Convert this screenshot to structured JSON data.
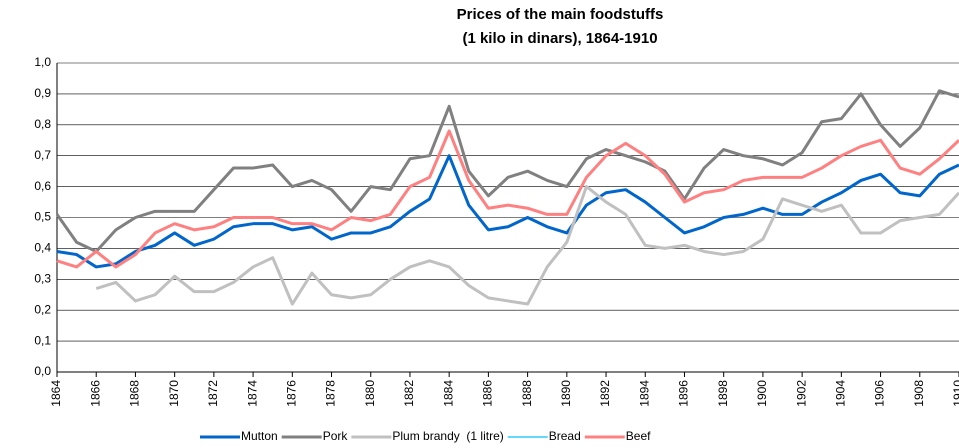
{
  "chart_data": {
    "type": "line",
    "title": "Prices of the main foodstuffs",
    "subtitle": "(1 kilo in dinars), 1864-1910",
    "x": [
      1864,
      1865,
      1866,
      1867,
      1868,
      1869,
      1870,
      1871,
      1872,
      1873,
      1874,
      1875,
      1876,
      1877,
      1878,
      1879,
      1880,
      1881,
      1882,
      1883,
      1884,
      1885,
      1886,
      1887,
      1888,
      1889,
      1890,
      1891,
      1892,
      1893,
      1894,
      1895,
      1896,
      1897,
      1898,
      1899,
      1900,
      1901,
      1902,
      1903,
      1904,
      1905,
      1906,
      1907,
      1908,
      1909,
      1910
    ],
    "xlim": [
      1864,
      1910
    ],
    "xticks": [
      1864,
      1866,
      1868,
      1870,
      1872,
      1874,
      1876,
      1878,
      1880,
      1882,
      1884,
      1886,
      1888,
      1890,
      1892,
      1894,
      1896,
      1898,
      1900,
      1902,
      1904,
      1906,
      1908,
      1910
    ],
    "ylim": [
      0,
      1
    ],
    "yticks": [
      {
        "value": 0,
        "label": "0,0"
      },
      {
        "value": 0.1,
        "label": "0,1"
      },
      {
        "value": 0.2,
        "label": "0,2"
      },
      {
        "value": 0.3,
        "label": "0,3"
      },
      {
        "value": 0.4,
        "label": "0,4"
      },
      {
        "value": 0.5,
        "label": "0,5"
      },
      {
        "value": 0.6,
        "label": "0,6"
      },
      {
        "value": 0.7,
        "label": "0,7"
      },
      {
        "value": 0.8,
        "label": "0,8"
      },
      {
        "value": 0.9,
        "label": "0,9"
      },
      {
        "value": 1,
        "label": "1,0"
      }
    ],
    "grid": true,
    "legend": "bottom",
    "series": [
      {
        "name": "Mutton",
        "color": "#0066cc",
        "values": [
          0.39,
          0.38,
          0.34,
          0.35,
          0.39,
          0.41,
          0.45,
          0.41,
          0.43,
          0.47,
          0.48,
          0.48,
          0.46,
          0.47,
          0.43,
          0.45,
          0.45,
          0.47,
          0.52,
          0.56,
          0.7,
          0.54,
          0.46,
          0.47,
          0.5,
          0.47,
          0.45,
          0.54,
          0.58,
          0.59,
          0.55,
          0.5,
          0.45,
          0.47,
          0.5,
          0.51,
          0.53,
          0.51,
          0.51,
          0.55,
          0.58,
          0.62,
          0.64,
          0.58,
          0.57,
          0.64,
          0.67
        ]
      },
      {
        "name": "Pork",
        "color": "#808080",
        "values": [
          0.51,
          0.42,
          0.39,
          0.46,
          0.5,
          0.52,
          0.52,
          0.52,
          0.59,
          0.66,
          0.66,
          0.67,
          0.6,
          0.62,
          0.59,
          0.52,
          0.6,
          0.59,
          0.69,
          0.7,
          0.86,
          0.65,
          0.57,
          0.63,
          0.65,
          0.62,
          0.6,
          0.69,
          0.72,
          0.7,
          0.68,
          0.65,
          0.56,
          0.66,
          0.72,
          0.7,
          0.69,
          0.67,
          0.71,
          0.81,
          0.82,
          0.9,
          0.8,
          0.73,
          0.79,
          0.91,
          0.89
        ]
      },
      {
        "name": "Plum brandy  (1 litre)",
        "color": "#c0c0c0",
        "values": [
          null,
          null,
          0.27,
          0.29,
          0.23,
          0.25,
          0.31,
          0.26,
          0.26,
          0.29,
          0.34,
          0.37,
          0.22,
          0.32,
          0.25,
          0.24,
          0.25,
          0.3,
          0.34,
          0.36,
          0.34,
          0.28,
          0.24,
          0.23,
          0.22,
          0.34,
          0.42,
          0.6,
          0.55,
          0.51,
          0.41,
          0.4,
          0.41,
          0.39,
          0.38,
          0.39,
          0.43,
          0.56,
          0.54,
          0.52,
          0.54,
          0.45,
          0.45,
          0.49,
          0.5,
          0.51,
          0.58
        ]
      },
      {
        "name": "Bread",
        "color": "#33ccff",
        "values": [
          null,
          null,
          null,
          null,
          null,
          null,
          null,
          null,
          null,
          null,
          null,
          null,
          null,
          null,
          null,
          null,
          null,
          null,
          null,
          null,
          null,
          null,
          null,
          null,
          null,
          null,
          null,
          null,
          null,
          null,
          null,
          null,
          null,
          null,
          null,
          null,
          null,
          null,
          null,
          null,
          null,
          null,
          null,
          null,
          null,
          null,
          null
        ]
      },
      {
        "name": "Beef",
        "color": "#ff8080",
        "values": [
          0.36,
          0.34,
          0.39,
          0.34,
          0.38,
          0.45,
          0.48,
          0.46,
          0.47,
          0.5,
          0.5,
          0.5,
          0.48,
          0.48,
          0.46,
          0.5,
          0.49,
          0.51,
          0.6,
          0.63,
          0.78,
          0.62,
          0.53,
          0.54,
          0.53,
          0.51,
          0.51,
          0.63,
          0.7,
          0.74,
          0.7,
          0.64,
          0.55,
          0.58,
          0.59,
          0.62,
          0.63,
          0.63,
          0.63,
          0.66,
          0.7,
          0.73,
          0.75,
          0.66,
          0.64,
          0.69,
          0.75
        ]
      }
    ]
  }
}
